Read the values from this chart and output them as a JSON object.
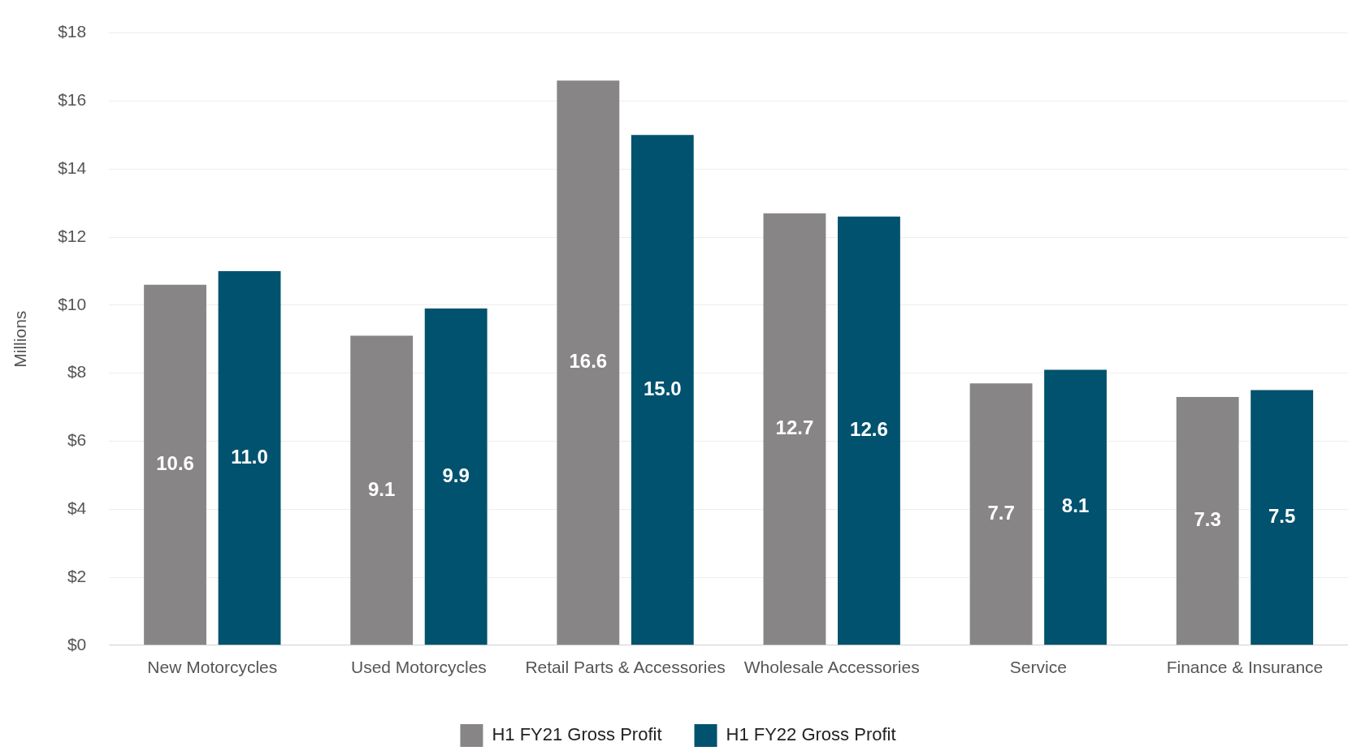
{
  "chart_data": {
    "type": "bar",
    "ylabel": "Millions",
    "categories": [
      "New Motorcycles",
      "Used Motorcycles",
      "Retail Parts & Accessories",
      "Wholesale Accessories",
      "Service",
      "Finance & Insurance"
    ],
    "series": [
      {
        "name": "H1 FY21 Gross Profit",
        "color": "#878586",
        "values": [
          10.6,
          9.1,
          16.6,
          12.7,
          7.7,
          7.3
        ],
        "value_labels": [
          "10.6",
          "9.1",
          "16.6",
          "12.7",
          "7.7",
          "7.3"
        ]
      },
      {
        "name": "H1 FY22 Gross Profit",
        "color": "#00526e",
        "values": [
          11.0,
          9.9,
          15.0,
          12.6,
          8.1,
          7.5
        ],
        "value_labels": [
          "11.0",
          "9.9",
          "15.0",
          "12.6",
          "8.1",
          "7.5"
        ]
      }
    ],
    "ylim": [
      0,
      18
    ],
    "yticks": [
      {
        "value": 0,
        "label": "$0"
      },
      {
        "value": 2,
        "label": "$2"
      },
      {
        "value": 4,
        "label": "$4"
      },
      {
        "value": 6,
        "label": "$6"
      },
      {
        "value": 8,
        "label": "$8"
      },
      {
        "value": 10,
        "label": "$10"
      },
      {
        "value": 12,
        "label": "$12"
      },
      {
        "value": 14,
        "label": "$14"
      },
      {
        "value": 16,
        "label": "$16"
      },
      {
        "value": 18,
        "label": "$18"
      }
    ],
    "grid": "y",
    "legend": "bottom"
  }
}
